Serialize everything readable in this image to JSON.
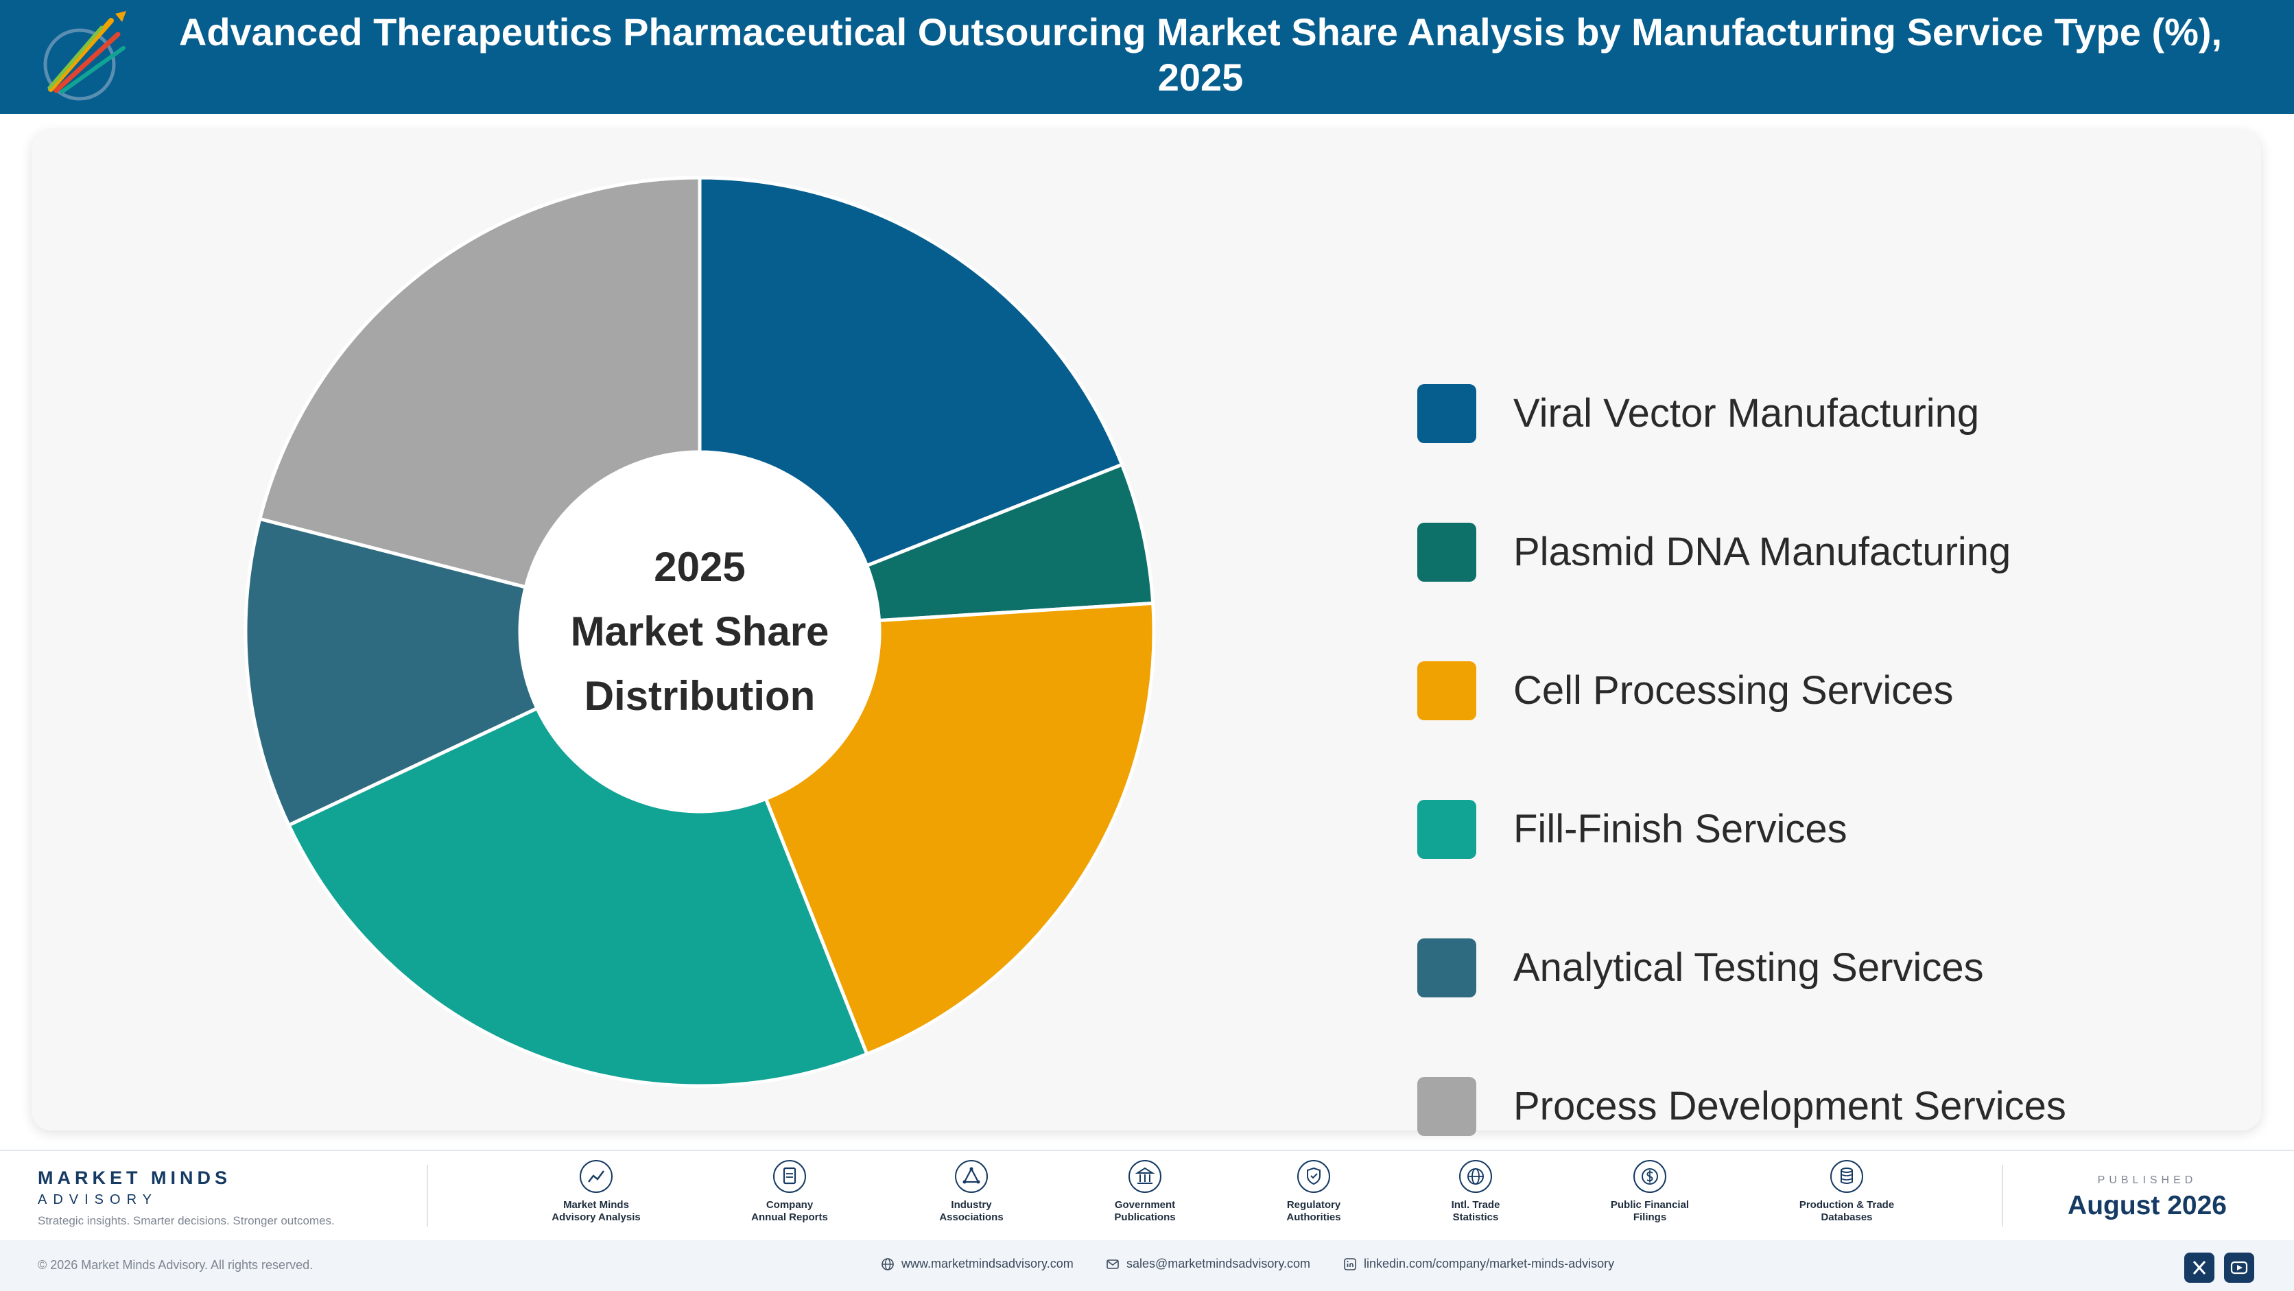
{
  "header": {
    "title": "Advanced Therapeutics Pharmaceutical Outsourcing Market Share Analysis by Manufacturing Service Type (%), 2025"
  },
  "chart_data": {
    "type": "pie",
    "style": "donut",
    "center_label": [
      "2025",
      "Market Share",
      "Distribution"
    ],
    "categories": [
      "Viral Vector Manufacturing",
      "Plasmid DNA Manufacturing",
      "Cell Processing Services",
      "Fill-Finish Services",
      "Analytical Testing Services",
      "Process Development Services"
    ],
    "values": [
      19,
      5,
      20,
      24,
      11,
      21
    ],
    "colors": [
      "#065e8e",
      "#0d7069",
      "#f0a202",
      "#11a394",
      "#2f6b80",
      "#a6a6a6"
    ],
    "legend_position": "right",
    "start_angle_deg": 0,
    "direction": "clockwise"
  },
  "footer": {
    "brand_name": "MARKET MINDS",
    "brand_sub": "ADVISORY",
    "brand_tagline": "Strategic insights. Smarter decisions. Stronger outcomes.",
    "sources": [
      {
        "line1": "Market Minds",
        "line2": "Advisory Analysis",
        "icon": "trend-line-icon"
      },
      {
        "line1": "Company",
        "line2": "Annual Reports",
        "icon": "document-icon"
      },
      {
        "line1": "Industry",
        "line2": "Associations",
        "icon": "network-icon"
      },
      {
        "line1": "Government",
        "line2": "Publications",
        "icon": "building-icon"
      },
      {
        "line1": "Regulatory",
        "line2": "Authorities",
        "icon": "shield-check-icon"
      },
      {
        "line1": "Intl. Trade",
        "line2": "Statistics",
        "icon": "globe-icon"
      },
      {
        "line1": "Public Financial",
        "line2": "Filings",
        "icon": "dollar-coin-icon"
      },
      {
        "line1": "Production & Trade",
        "line2": "Databases",
        "icon": "database-icon"
      }
    ],
    "published_label": "PUBLISHED",
    "published_date": "August 2026",
    "copyright": "© 2026 Market Minds Advisory. All rights reserved.",
    "website": "www.marketmindsadvisory.com",
    "email": "sales@marketmindsadvisory.com",
    "linkedin": "linkedin.com/company/market-minds-advisory",
    "social": [
      "x-icon",
      "youtube-icon"
    ]
  }
}
